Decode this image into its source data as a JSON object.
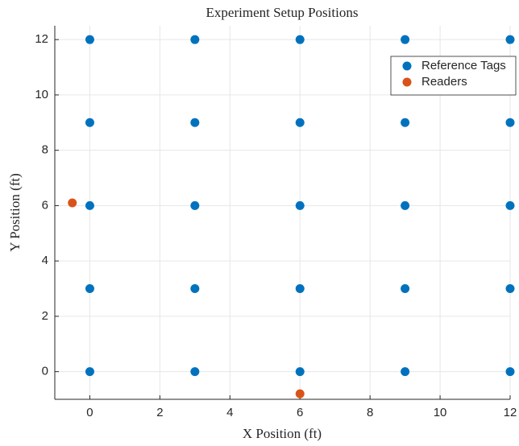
{
  "chart_data": {
    "type": "scatter",
    "title": "Experiment Setup Positions",
    "xlabel": "X Position (ft)",
    "ylabel": "Y Position (ft)",
    "xlim": [
      -1,
      12
    ],
    "ylim": [
      -1,
      12.5
    ],
    "xticks": [
      0,
      2,
      4,
      6,
      8,
      10,
      12
    ],
    "yticks": [
      0,
      2,
      4,
      6,
      8,
      10,
      12
    ],
    "grid": true,
    "legend": "upper right",
    "series": [
      {
        "name": "Reference Tags",
        "color": "#0072bd",
        "x": [
          0,
          3,
          6,
          9,
          12,
          0,
          3,
          6,
          9,
          12,
          0,
          3,
          6,
          9,
          12,
          0,
          3,
          6,
          9,
          12,
          0,
          3,
          6,
          9,
          12
        ],
        "y": [
          0,
          0,
          0,
          0,
          0,
          3,
          3,
          3,
          3,
          3,
          6,
          6,
          6,
          6,
          6,
          9,
          9,
          9,
          9,
          9,
          12,
          12,
          12,
          12,
          12
        ]
      },
      {
        "name": "Readers",
        "color": "#d95319",
        "x": [
          -0.5,
          6
        ],
        "y": [
          6.1,
          -0.8
        ]
      }
    ]
  }
}
